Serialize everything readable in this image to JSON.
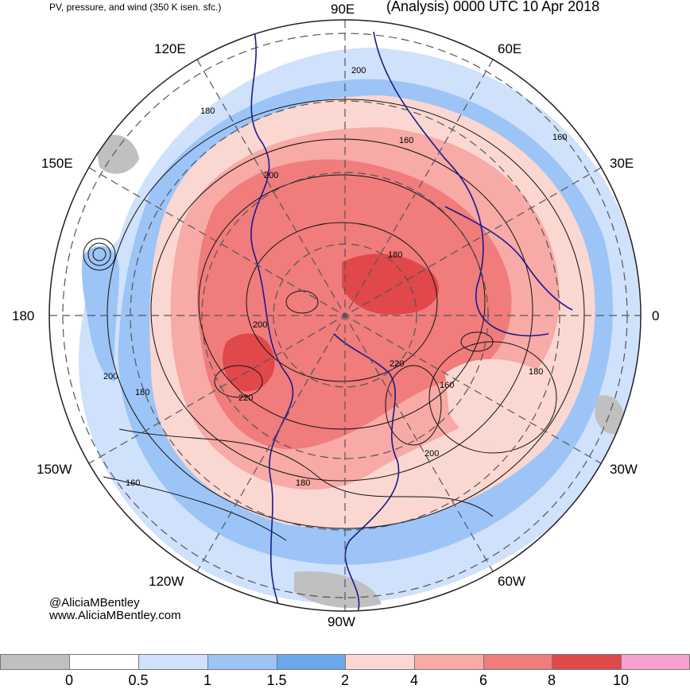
{
  "header": {
    "left_title": "PV, pressure, and wind (350 K isen. sfc.)",
    "right_title": "(Analysis) 0000 UTC 10 Apr 2018"
  },
  "map": {
    "projection": "north polar stereographic",
    "longitude_labels": [
      "90E",
      "60E",
      "30E",
      "0",
      "30W",
      "60W",
      "90W",
      "120W",
      "150W",
      "180",
      "150E",
      "120E"
    ],
    "contour_labels": [
      "200",
      "180",
      "160",
      "200",
      "180",
      "200",
      "220",
      "180",
      "200",
      "220",
      "160",
      "180",
      "200",
      "160",
      "180",
      "160"
    ]
  },
  "credits": {
    "line1": "@AliciaMBentley",
    "line2": "www.AliciaMBentley.com"
  },
  "colorbar": {
    "labels": [
      "0",
      "0.5",
      "1",
      "1.5",
      "2",
      "4",
      "6",
      "8",
      "10"
    ],
    "colors": [
      "#c0c0c0",
      "#ffffff",
      "#cfe1fb",
      "#9cc4f6",
      "#6aa8ee",
      "#fbd7d1",
      "#f7aaa6",
      "#f07c7c",
      "#e04849",
      "#f8a0cf"
    ]
  }
}
